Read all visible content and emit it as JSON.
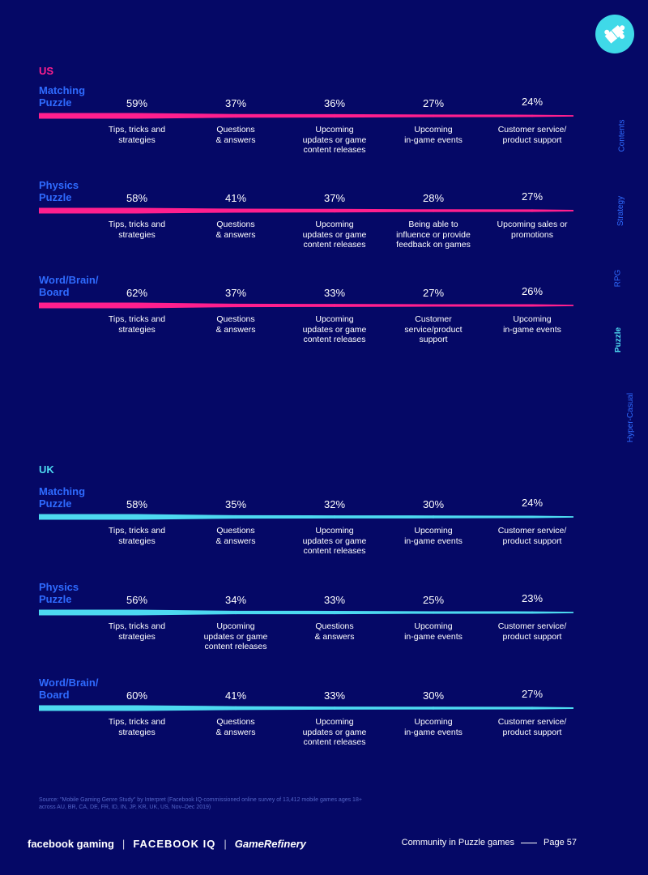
{
  "page": {
    "footer_title": "Community in Puzzle games",
    "page_number": "Page 57",
    "source": "Source: \"Mobile Gaming Genre Study\" by Interpret (Facebook IQ-commissioned online survey of 13,412 mobile games ages 18+ across AU, BR, CA, DE, FR, ID, IN, JP, KR, UK, US, Nov–Dec 2019)",
    "logos": {
      "fb_gaming": "facebook gaming",
      "fb_iq": "FACEBOOK IQ",
      "game_refinery": "GameRefinery"
    },
    "nav": [
      "Contents",
      "Strategy",
      "RPG",
      "Puzzle",
      "Hyper-Casual"
    ],
    "active_nav": "Puzzle",
    "colors": {
      "background": "#050866",
      "us_accent": "#ff1f8e",
      "uk_accent": "#4dd9f0",
      "genre_label": "#2f6bff",
      "nav_inactive": "#2f6bff",
      "nav_active": "#4dd9f0",
      "badge": "#3fd9e8"
    },
    "icons": {
      "badge": "puzzle-piece-icon"
    }
  },
  "chart_data": [
    {
      "type": "bar",
      "region": "US",
      "genre": "Matching\nPuzzle",
      "values": [
        59,
        37,
        36,
        27,
        24
      ],
      "labels": [
        "59%",
        "37%",
        "36%",
        "27%",
        "24%"
      ],
      "categories": [
        "Tips, tricks and\nstrategies",
        "Questions\n& answers",
        "Upcoming\nupdates or game\ncontent releases",
        "Upcoming\nin-game events",
        "Customer service/\nproduct support"
      ]
    },
    {
      "type": "bar",
      "region": "US",
      "genre": "Physics\nPuzzle",
      "values": [
        58,
        41,
        37,
        28,
        27
      ],
      "labels": [
        "58%",
        "41%",
        "37%",
        "28%",
        "27%"
      ],
      "categories": [
        "Tips, tricks and\nstrategies",
        "Questions\n& answers",
        "Upcoming\nupdates or game\ncontent releases",
        "Being able to\ninfluence or provide\nfeedback on games",
        "Upcoming sales or\npromotions"
      ]
    },
    {
      "type": "bar",
      "region": "US",
      "genre": "Word/Brain/\nBoard",
      "values": [
        62,
        37,
        33,
        27,
        26
      ],
      "labels": [
        "62%",
        "37%",
        "33%",
        "27%",
        "26%"
      ],
      "categories": [
        "Tips, tricks and\nstrategies",
        "Questions\n& answers",
        "Upcoming\nupdates or game\ncontent releases",
        "Customer\nservice/product\nsupport",
        "Upcoming\nin-game events"
      ]
    },
    {
      "type": "bar",
      "region": "UK",
      "genre": "Matching\nPuzzle",
      "values": [
        58,
        35,
        32,
        30,
        24
      ],
      "labels": [
        "58%",
        "35%",
        "32%",
        "30%",
        "24%"
      ],
      "categories": [
        "Tips, tricks and\nstrategies",
        "Questions\n& answers",
        "Upcoming\nupdates or game\ncontent releases",
        "Upcoming\nin-game events",
        "Customer service/\nproduct support"
      ]
    },
    {
      "type": "bar",
      "region": "UK",
      "genre": "Physics\nPuzzle",
      "values": [
        56,
        34,
        33,
        25,
        23
      ],
      "labels": [
        "56%",
        "34%",
        "33%",
        "25%",
        "23%"
      ],
      "categories": [
        "Tips, tricks and\nstrategies",
        "Upcoming\nupdates or game\ncontent releases",
        "Questions\n& answers",
        "Upcoming\nin-game events",
        "Customer service/\nproduct support"
      ]
    },
    {
      "type": "bar",
      "region": "UK",
      "genre": "Word/Brain/\nBoard",
      "values": [
        60,
        41,
        33,
        30,
        27
      ],
      "labels": [
        "60%",
        "41%",
        "33%",
        "30%",
        "27%"
      ],
      "categories": [
        "Tips, tricks and\nstrategies",
        "Questions\n& answers",
        "Upcoming\nupdates or game\ncontent releases",
        "Upcoming\nin-game events",
        "Customer service/\nproduct support"
      ]
    }
  ]
}
